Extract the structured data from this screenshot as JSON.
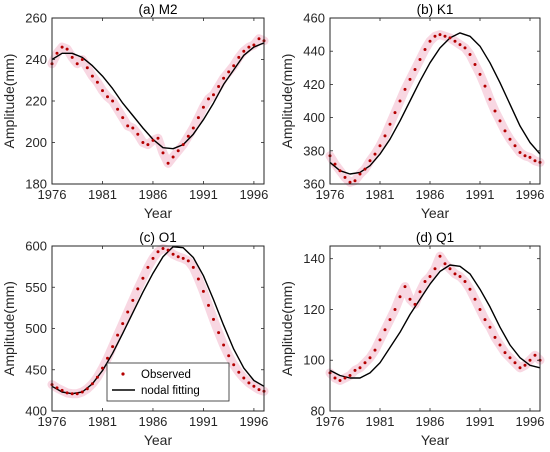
{
  "colors": {
    "observed": "#b40000",
    "observed_band": "#f6c9d8",
    "fit": "#000000",
    "axis": "#262626"
  },
  "chart_data": [
    {
      "type": "line",
      "title": "(a) M2",
      "xlabel": "Year",
      "ylabel": "Amplitude(mm)",
      "xlim": [
        1976,
        1997
      ],
      "ylim": [
        180,
        260
      ],
      "xticks": [
        1976,
        1981,
        1986,
        1991,
        1996
      ],
      "yticks": [
        180,
        200,
        220,
        240,
        260
      ],
      "xtick_labels": [
        "1976",
        "1981",
        "1986",
        "1991",
        "1996"
      ],
      "ytick_labels": [
        "180",
        "200",
        "220",
        "240",
        "260"
      ],
      "legend": null,
      "series": [
        {
          "name": "Observed",
          "style": "dots",
          "x": [
            1976,
            1976.5,
            1977,
            1977.5,
            1978,
            1978.5,
            1979,
            1979.5,
            1980,
            1980.5,
            1981,
            1981.5,
            1982,
            1982.5,
            1983,
            1983.5,
            1984,
            1984.5,
            1985,
            1985.5,
            1986,
            1986.5,
            1987,
            1987.5,
            1988,
            1988.5,
            1989,
            1989.5,
            1990,
            1990.5,
            1991,
            1991.5,
            1992,
            1992.5,
            1993,
            1993.5,
            1994,
            1994.5,
            1995,
            1995.5,
            1996,
            1996.5,
            1997
          ],
          "y": [
            238,
            243,
            246,
            245,
            241,
            238,
            240,
            236,
            232,
            229,
            225,
            222,
            220,
            216,
            212,
            208,
            207,
            204,
            200,
            199,
            201,
            202,
            195,
            190,
            193,
            196,
            199,
            203,
            207,
            212,
            217,
            221,
            223,
            227,
            231,
            234,
            237,
            241,
            244,
            246,
            247,
            250,
            249
          ]
        },
        {
          "name": "nodal fitting",
          "style": "line",
          "x": [
            1976,
            1977,
            1978,
            1979,
            1980,
            1981,
            1982,
            1983,
            1984,
            1985,
            1986,
            1987,
            1988,
            1989,
            1990,
            1991,
            1992,
            1993,
            1994,
            1995,
            1996,
            1997
          ],
          "y": [
            240,
            243,
            243,
            241,
            237,
            232,
            226,
            219,
            213,
            207,
            201.5,
            197.5,
            197,
            199,
            204,
            211,
            219,
            228,
            235,
            242,
            246,
            248
          ]
        }
      ]
    },
    {
      "type": "line",
      "title": "(b) K1",
      "xlabel": "Year",
      "ylabel": "Amplitude(mm)",
      "xlim": [
        1976,
        1997
      ],
      "ylim": [
        360,
        460
      ],
      "xticks": [
        1976,
        1981,
        1986,
        1991,
        1996
      ],
      "yticks": [
        360,
        380,
        400,
        420,
        440,
        460
      ],
      "xtick_labels": [
        "1976",
        "1981",
        "1986",
        "1991",
        "1996"
      ],
      "ytick_labels": [
        "360",
        "380",
        "400",
        "420",
        "440",
        "460"
      ],
      "legend": null,
      "series": [
        {
          "name": "Observed",
          "style": "dots",
          "x": [
            1976,
            1976.5,
            1977,
            1977.5,
            1978,
            1978.5,
            1979,
            1979.5,
            1980,
            1980.5,
            1981,
            1981.5,
            1982,
            1982.5,
            1983,
            1983.5,
            1984,
            1984.5,
            1985,
            1985.5,
            1986,
            1986.5,
            1987,
            1987.5,
            1988,
            1988.5,
            1989,
            1989.5,
            1990,
            1990.5,
            1991,
            1991.5,
            1992,
            1992.5,
            1993,
            1993.5,
            1994,
            1994.5,
            1995,
            1995.5,
            1996,
            1996.5,
            1997
          ],
          "y": [
            377,
            372,
            368,
            364,
            361,
            362,
            366,
            369,
            374,
            378,
            383,
            389,
            396,
            403,
            410,
            417,
            423,
            429,
            435,
            441,
            446,
            449,
            450,
            449,
            448,
            446,
            444,
            442,
            438,
            432,
            426,
            419,
            411,
            404,
            398,
            392,
            387,
            383,
            379,
            377,
            376,
            374,
            373
          ]
        },
        {
          "name": "nodal fitting",
          "style": "line",
          "x": [
            1976,
            1977,
            1978,
            1979,
            1980,
            1981,
            1982,
            1983,
            1984,
            1985,
            1986,
            1987,
            1988,
            1989,
            1990,
            1991,
            1992,
            1993,
            1994,
            1995,
            1996,
            1997
          ],
          "y": [
            373,
            368,
            366,
            367,
            371,
            378,
            387,
            398,
            410,
            422,
            433,
            442,
            448,
            451,
            449,
            443,
            433,
            421,
            408,
            395,
            385,
            378
          ]
        }
      ]
    },
    {
      "type": "line",
      "title": "(c) O1",
      "xlabel": "Year",
      "ylabel": "Amplitude(mm)",
      "xlim": [
        1976,
        1997
      ],
      "ylim": [
        400,
        600
      ],
      "xticks": [
        1976,
        1981,
        1986,
        1991,
        1996
      ],
      "yticks": [
        400,
        450,
        500,
        550,
        600
      ],
      "xtick_labels": [
        "1976",
        "1981",
        "1986",
        "1991",
        "1996"
      ],
      "ytick_labels": [
        "400",
        "450",
        "500",
        "550",
        "600"
      ],
      "legend": {
        "position": "lower-left",
        "entries": [
          "Observed",
          "nodal fitting"
        ]
      },
      "series": [
        {
          "name": "Observed",
          "style": "dots",
          "x": [
            1976,
            1976.5,
            1977,
            1977.5,
            1978,
            1978.5,
            1979,
            1979.5,
            1980,
            1980.5,
            1981,
            1981.5,
            1982,
            1982.5,
            1983,
            1983.5,
            1984,
            1984.5,
            1985,
            1985.5,
            1986,
            1986.5,
            1987,
            1987.5,
            1988,
            1988.5,
            1989,
            1989.5,
            1990,
            1990.5,
            1991,
            1991.5,
            1992,
            1992.5,
            1993,
            1993.5,
            1994,
            1994.5,
            1995,
            1995.5,
            1996,
            1996.5,
            1997
          ],
          "y": [
            432,
            428,
            425,
            422,
            421,
            421,
            423,
            427,
            433,
            441,
            452,
            464,
            478,
            492,
            506,
            520,
            534,
            548,
            561,
            574,
            585,
            593,
            597,
            595,
            590,
            587,
            585,
            582,
            574,
            560,
            545,
            528,
            511,
            495,
            480,
            467,
            456,
            447,
            440,
            434,
            430,
            426,
            424
          ]
        },
        {
          "name": "nodal fitting",
          "style": "line",
          "x": [
            1976,
            1977,
            1978,
            1979,
            1980,
            1981,
            1982,
            1983,
            1984,
            1985,
            1986,
            1987,
            1988,
            1989,
            1990,
            1991,
            1992,
            1993,
            1994,
            1995,
            1996,
            1997
          ],
          "y": [
            430,
            423,
            421,
            423,
            433,
            449,
            470,
            494,
            519,
            544,
            567,
            587,
            599,
            598,
            586,
            564,
            535,
            504,
            475,
            452,
            437,
            430
          ]
        }
      ]
    },
    {
      "type": "line",
      "title": "(d) Q1",
      "xlabel": "Year",
      "ylabel": "Amplitude(mm)",
      "xlim": [
        1976,
        1997
      ],
      "ylim": [
        80,
        145
      ],
      "xticks": [
        1976,
        1981,
        1986,
        1991,
        1996
      ],
      "yticks": [
        80,
        100,
        120,
        140
      ],
      "xtick_labels": [
        "1976",
        "1981",
        "1986",
        "1991",
        "1996"
      ],
      "ytick_labels": [
        "80",
        "100",
        "120",
        "140"
      ],
      "legend": null,
      "series": [
        {
          "name": "Observed",
          "style": "dots",
          "x": [
            1976,
            1976.5,
            1977,
            1977.5,
            1978,
            1978.5,
            1979,
            1979.5,
            1980,
            1980.5,
            1981,
            1981.5,
            1982,
            1982.5,
            1983,
            1983.5,
            1984,
            1984.5,
            1985,
            1985.5,
            1986,
            1986.5,
            1987,
            1987.5,
            1988,
            1988.5,
            1989,
            1989.5,
            1990,
            1990.5,
            1991,
            1991.5,
            1992,
            1992.5,
            1993,
            1993.5,
            1994,
            1994.5,
            1995,
            1995.5,
            1996,
            1996.5,
            1997
          ],
          "y": [
            95,
            93,
            92,
            93,
            94,
            96,
            97,
            99,
            101,
            104,
            108,
            112,
            116,
            120,
            125,
            129,
            124,
            122,
            127,
            131,
            133,
            136,
            141,
            138,
            136,
            134,
            133,
            131,
            128,
            124,
            120,
            116,
            113,
            109,
            106,
            103,
            101,
            99,
            97,
            98,
            100,
            102,
            100
          ]
        },
        {
          "name": "nodal fitting",
          "style": "line",
          "x": [
            1976,
            1977,
            1978,
            1979,
            1980,
            1981,
            1982,
            1983,
            1984,
            1985,
            1986,
            1987,
            1988,
            1989,
            1990,
            1991,
            1992,
            1993,
            1994,
            1995,
            1996,
            1997
          ],
          "y": [
            96,
            94,
            93,
            93,
            95,
            99,
            105,
            111,
            118,
            124,
            130,
            135,
            137.5,
            137,
            134,
            128,
            121,
            113,
            106,
            101,
            98,
            97
          ]
        }
      ]
    }
  ]
}
